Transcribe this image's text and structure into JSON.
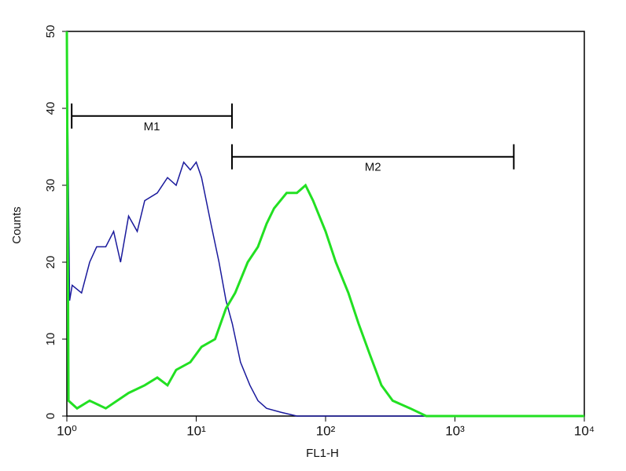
{
  "chart_data": {
    "type": "line",
    "x_label": "FL1-H",
    "y_label": "Counts",
    "xlim": [
      1,
      10000
    ],
    "ylim": [
      0,
      50
    ],
    "xscale": "log",
    "xticks": [
      {
        "value": 1,
        "label": "10⁰"
      },
      {
        "value": 10,
        "label": "10¹"
      },
      {
        "value": 100,
        "label": "10²"
      },
      {
        "value": 1000,
        "label": "10³"
      },
      {
        "value": 10000,
        "label": "10⁴"
      }
    ],
    "yticks": [
      0,
      10,
      20,
      30,
      40,
      50
    ],
    "series": [
      {
        "color": "#1a1a9c",
        "x": [
          1,
          1.05,
          1.1,
          1.3,
          1.5,
          1.7,
          2,
          2.3,
          2.6,
          3,
          3.5,
          4,
          5,
          6,
          7,
          8,
          9,
          10,
          11,
          13,
          15,
          17,
          19,
          22,
          26,
          30,
          35,
          45,
          60,
          100,
          10000
        ],
        "values": [
          50,
          15,
          17,
          16,
          20,
          22,
          22,
          24,
          20,
          26,
          24,
          28,
          29,
          31,
          30,
          33,
          32,
          33,
          31,
          25,
          20,
          15,
          12,
          7,
          4,
          2,
          1,
          0.5,
          0,
          0,
          0
        ]
      },
      {
        "color": "#22e022",
        "x": [
          1,
          1.03,
          1.2,
          1.5,
          2,
          3,
          4,
          5,
          6,
          7,
          9,
          11,
          14,
          17,
          20,
          25,
          30,
          35,
          40,
          50,
          60,
          70,
          80,
          100,
          120,
          150,
          180,
          220,
          270,
          330,
          450,
          600,
          10000
        ],
        "values": [
          50,
          2,
          1,
          2,
          1,
          3,
          4,
          5,
          4,
          6,
          7,
          9,
          10,
          14,
          16,
          20,
          22,
          25,
          27,
          29,
          29,
          30,
          28,
          24,
          20,
          16,
          12,
          8,
          4,
          2,
          1,
          0,
          0
        ]
      }
    ],
    "markers": [
      {
        "label": "M1",
        "range": [
          1.09,
          18.9
        ],
        "y": 39
      },
      {
        "label": "M2",
        "range": [
          18.9,
          2850
        ],
        "y": 33.7
      }
    ]
  }
}
